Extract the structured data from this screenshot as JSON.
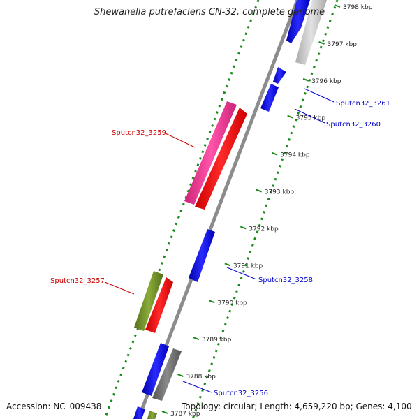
{
  "title": "Shewanella putrefaciens CN-32, complete genome",
  "footer": {
    "accession": "Accession: NC_009438",
    "summary": "Topology: circular; Length: 4,659,220 bp; Genes: 4,100"
  },
  "ticks": [
    {
      "label": "3787 kbp",
      "pos": 3787
    },
    {
      "label": "3788 kbp",
      "pos": 3788
    },
    {
      "label": "3789 kbp",
      "pos": 3789
    },
    {
      "label": "3790 kbp",
      "pos": 3790
    },
    {
      "label": "3791 kbp",
      "pos": 3791
    },
    {
      "label": "3792 kbp",
      "pos": 3792
    },
    {
      "label": "3793 kbp",
      "pos": 3793
    },
    {
      "label": "3794 kbp",
      "pos": 3794
    },
    {
      "label": "3795 kbp",
      "pos": 3795
    },
    {
      "label": "3796 kbp",
      "pos": 3796
    },
    {
      "label": "3797 kbp",
      "pos": 3797
    },
    {
      "label": "3798 kbp",
      "pos": 3798
    }
  ],
  "genes": [
    {
      "name": "Sputcn32_3261",
      "color": "#0000cc"
    },
    {
      "name": "Sputcn32_3260",
      "color": "#0000cc"
    },
    {
      "name": "Sputcn32_3259",
      "color": "#cc0000"
    },
    {
      "name": "Sputcn32_3258",
      "color": "#0000cc"
    },
    {
      "name": "Sputcn32_3257",
      "color": "#cc0000"
    },
    {
      "name": "Sputcn32_3256",
      "color": "#0000cc"
    }
  ],
  "colors": {
    "backbone": "#8c8c8c",
    "dots": "#1a8a1a",
    "blue": "#1010ee",
    "red": "#ee1111",
    "magenta": "#ee3399",
    "olive": "#6b8e23",
    "gray": "#707070",
    "light_gray": "#c8c8c8"
  }
}
